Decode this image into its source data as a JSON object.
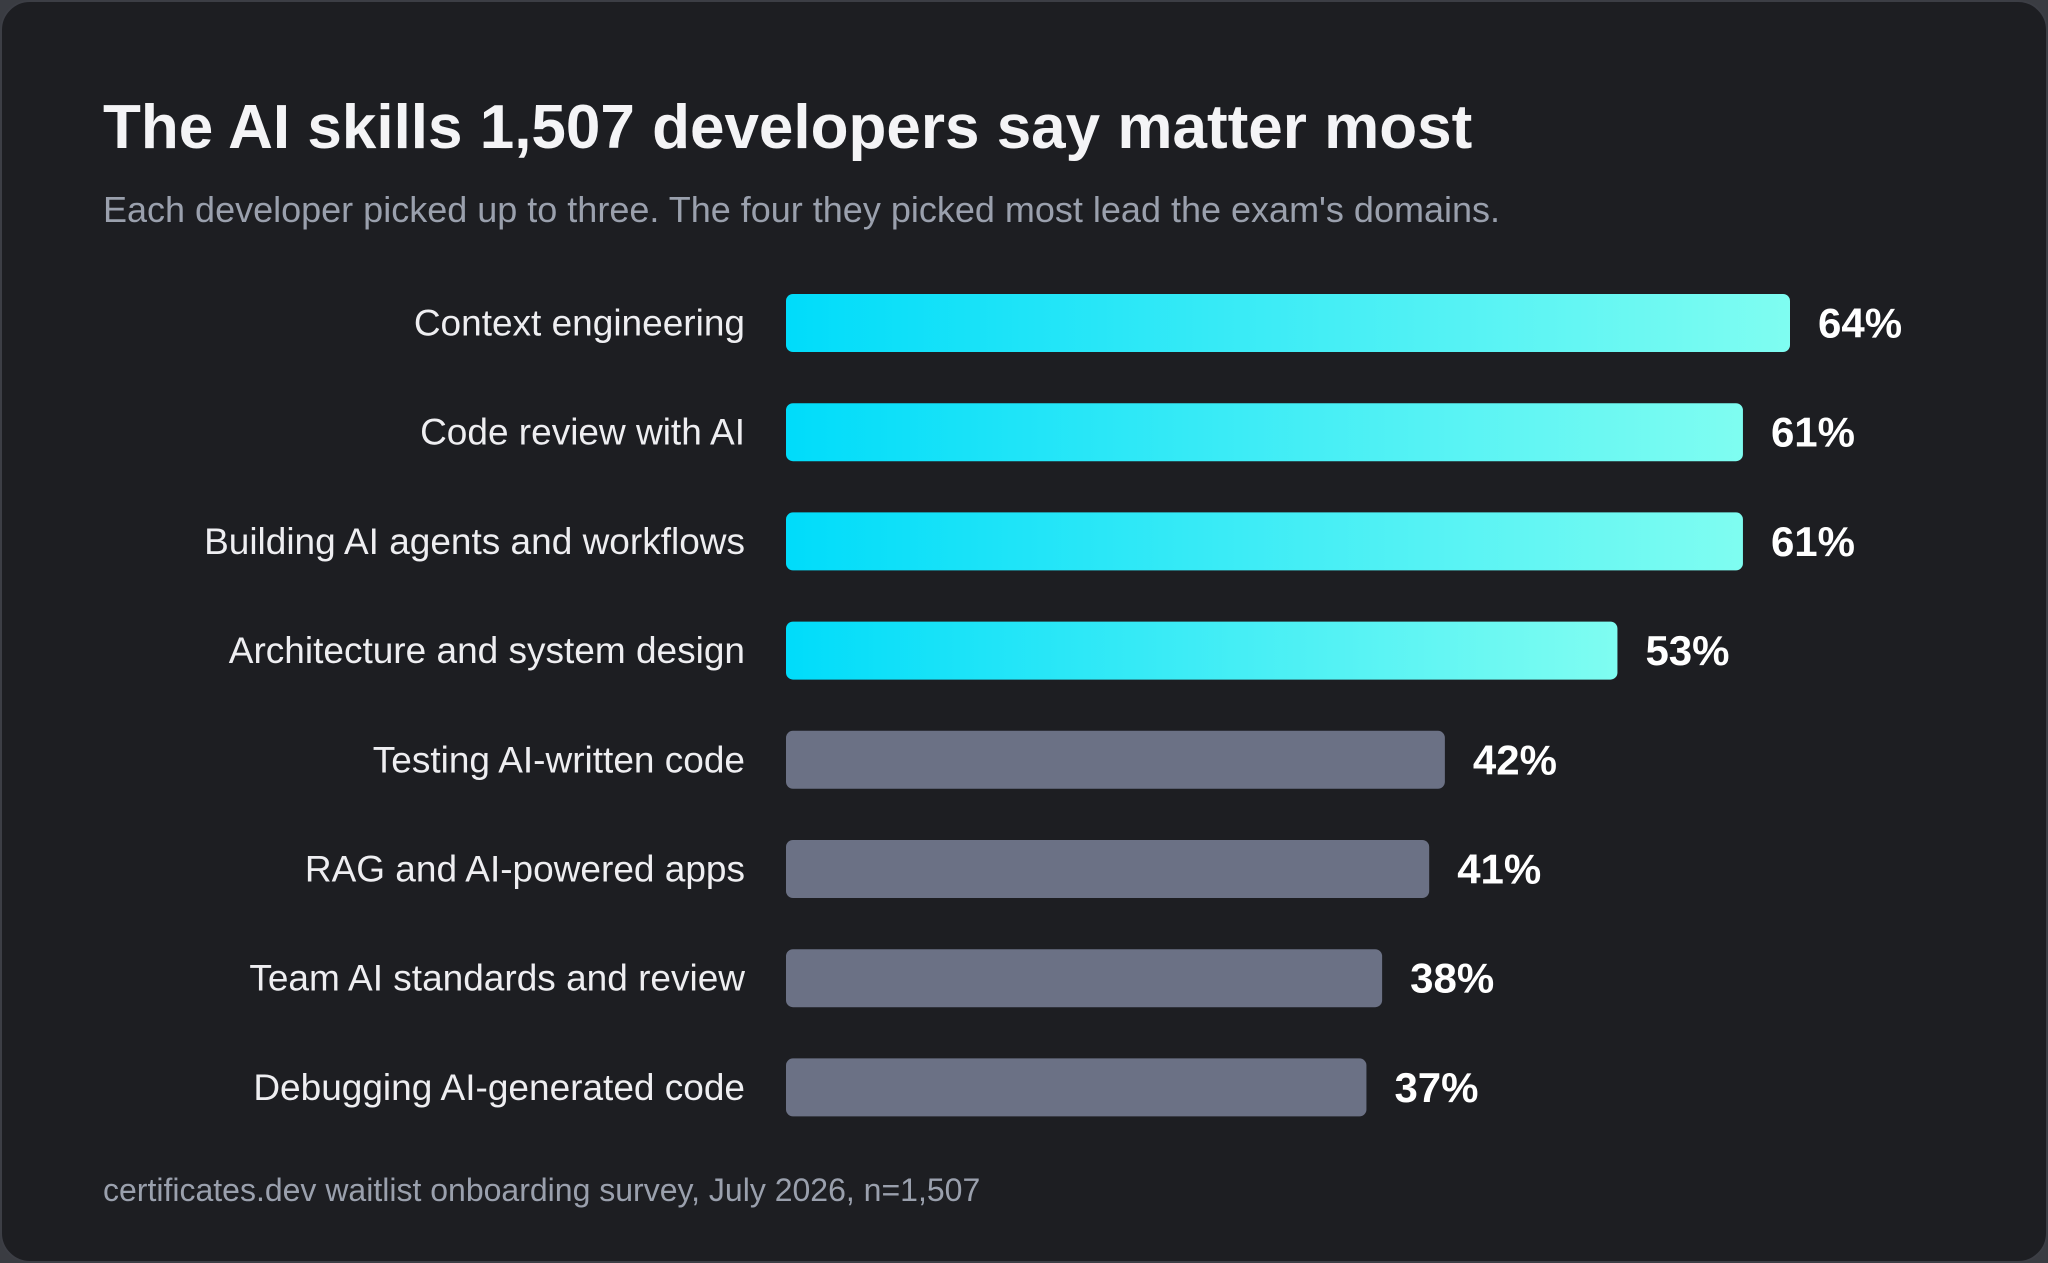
{
  "title": "The AI skills 1,507 developers say matter most",
  "subtitle": "Each developer picked up to three. The four they picked most lead the exam's domains.",
  "source": "certificates.dev waitlist onboarding survey, July 2026, n=1,507",
  "colors": {
    "background": "#1d1e22",
    "highlight_start": "#00dcfa",
    "highlight_end": "#7ffdf1",
    "muted_bar": "#6b7185",
    "text": "#eeeef1",
    "secondary_text": "#9aa0ad"
  },
  "chart_data": {
    "type": "bar",
    "orientation": "horizontal",
    "title": "The AI skills 1,507 developers say matter most",
    "subtitle": "Each developer picked up to three. The four they picked most lead the exam's domains.",
    "categories": [
      "Context engineering",
      "Code review with AI",
      "Building AI agents and workflows",
      "Architecture and system design",
      "Testing AI-written code",
      "RAG and AI-powered apps",
      "Team AI standards and review",
      "Debugging AI-generated code"
    ],
    "values": [
      64,
      61,
      61,
      53,
      42,
      41,
      38,
      37
    ],
    "value_labels": [
      "64%",
      "61%",
      "61%",
      "53%",
      "42%",
      "41%",
      "38%",
      "37%"
    ],
    "highlighted": [
      true,
      true,
      true,
      true,
      false,
      false,
      false,
      false
    ],
    "unit": "%",
    "xlim": [
      0,
      64
    ],
    "grid": false,
    "legend": "none"
  }
}
